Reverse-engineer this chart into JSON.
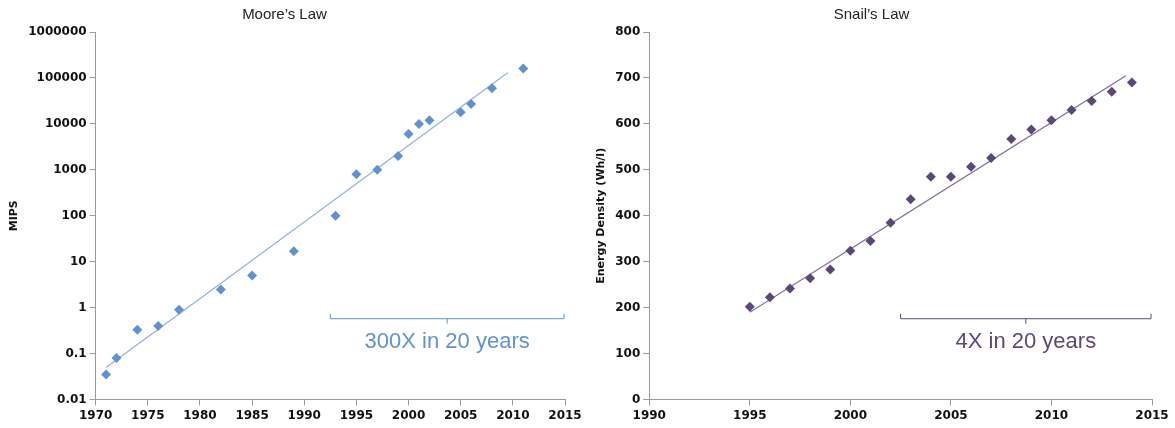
{
  "chart_data": [
    {
      "type": "scatter",
      "title": "Moore’s Law",
      "ylabel": "MIPS",
      "log": "y",
      "grid": false,
      "legend": false,
      "marker": "diamond",
      "xlim": [
        1970,
        2015
      ],
      "xticks": [
        1970,
        1975,
        1980,
        1985,
        1990,
        1995,
        2000,
        2005,
        2010,
        2015
      ],
      "ylim": [
        0.01,
        1000000
      ],
      "yticks": [
        0.01,
        0.1,
        1,
        10,
        100,
        1000,
        10000,
        100000,
        1000000
      ],
      "series": [
        {
          "color": "#5f93d0",
          "x": [
            1971,
            1972,
            1974,
            1976,
            1978,
            1982,
            1985,
            1989,
            1993,
            1995,
            1997,
            1999,
            2000,
            2001,
            2002,
            2005,
            2006,
            2008,
            2011
          ],
          "values": [
            0.035,
            0.08,
            0.33,
            0.4,
            0.9,
            2.5,
            5,
            17,
            100,
            800,
            1000,
            2000,
            6000,
            10000,
            12000,
            18000,
            27000,
            60000,
            160000
          ]
        },
        {
          "type": "line",
          "color": "#8fb1db",
          "marker": "none",
          "x": [
            1971,
            2009.5
          ],
          "values": [
            0.05,
            130000
          ]
        }
      ],
      "annotations": [
        "300X in 20 years"
      ]
    },
    {
      "type": "scatter",
      "title": "Snail’s Law",
      "ylabel": "Energy Density (Wh/l)",
      "grid": false,
      "legend": false,
      "marker": "diamond",
      "xlim": [
        1990,
        2015
      ],
      "xticks": [
        1990,
        1995,
        2000,
        2005,
        2010,
        2015
      ],
      "ylim": [
        0,
        800
      ],
      "yticks": [
        0,
        100,
        200,
        300,
        400,
        500,
        600,
        700,
        800
      ],
      "series": [
        {
          "color": "#5b4878",
          "x": [
            1995,
            1996,
            1997,
            1998,
            1999,
            2000,
            2001,
            2002,
            2003,
            2004,
            2005,
            2006,
            2007,
            2008,
            2009,
            2010,
            2011,
            2012,
            2013,
            2014
          ],
          "values": [
            202,
            223,
            242,
            264,
            283,
            324,
            345,
            385,
            436,
            485,
            485,
            507,
            526,
            567,
            588,
            608,
            630,
            650,
            670,
            690
          ]
        },
        {
          "type": "line",
          "color": "#7f6d9b",
          "marker": "none",
          "x": [
            1995,
            2013.7
          ],
          "values": [
            190,
            705
          ]
        }
      ],
      "annotations": [
        "4X in 20 years"
      ]
    }
  ]
}
